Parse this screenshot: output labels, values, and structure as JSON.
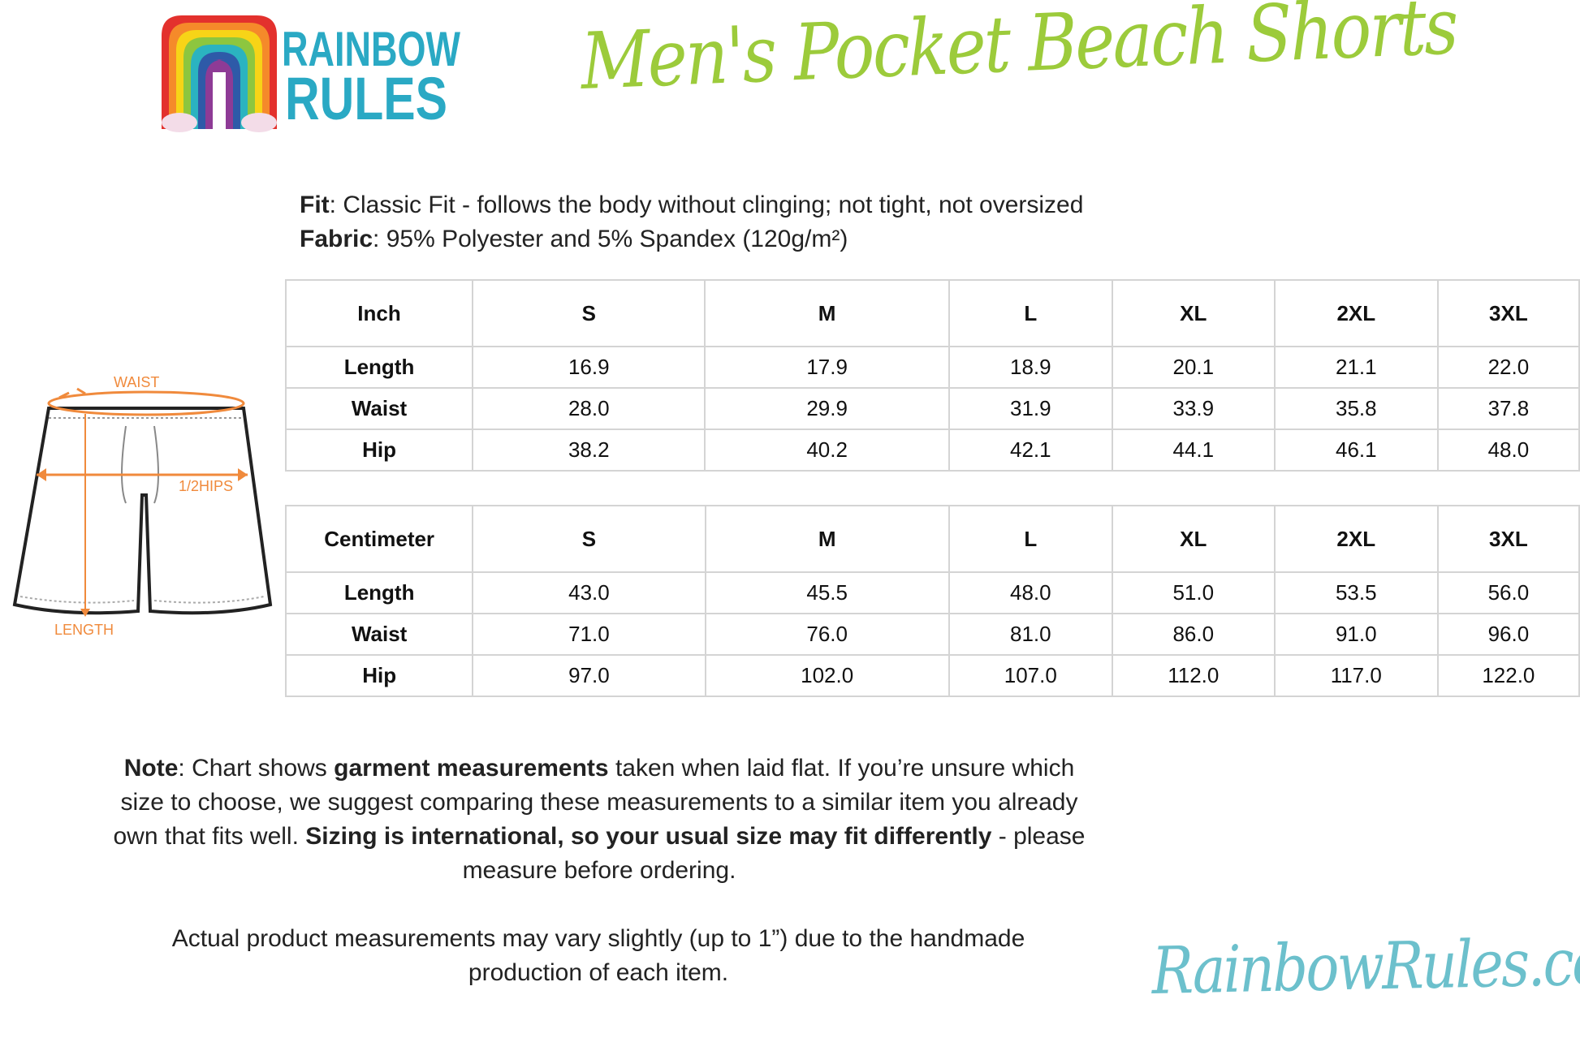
{
  "brand": {
    "logo_text_1": "RAINBOW",
    "logo_text_2": "RULES",
    "colors": [
      "#e3312d",
      "#f58a2a",
      "#f7d417",
      "#8dc63f",
      "#2bb3c0",
      "#2e5aa8",
      "#8e3b96"
    ]
  },
  "title": "Men's Pocket Beach Shorts",
  "specs": {
    "fit_label": "Fit",
    "fit_value": ": Classic Fit - follows the body without clinging; not tight, not oversized",
    "fabric_label": "Fabric",
    "fabric_value": ": 95% Polyester and 5% Spandex (120g/m²)"
  },
  "diagram": {
    "waist": "WAIST",
    "hips": "1/2HIPS",
    "length": "LENGTH",
    "accent": "#f08a3c"
  },
  "inch_table": {
    "headers": [
      "Inch",
      "S",
      "M",
      "L",
      "XL",
      "2XL",
      "3XL"
    ],
    "rows": [
      [
        "Length",
        "16.9",
        "17.9",
        "18.9",
        "20.1",
        "21.1",
        "22.0"
      ],
      [
        "Waist",
        "28.0",
        "29.9",
        "31.9",
        "33.9",
        "35.8",
        "37.8"
      ],
      [
        "Hip",
        "38.2",
        "40.2",
        "42.1",
        "44.1",
        "46.1",
        "48.0"
      ]
    ]
  },
  "cm_table": {
    "headers": [
      "Centimeter",
      "S",
      "M",
      "L",
      "XL",
      "2XL",
      "3XL"
    ],
    "rows": [
      [
        "Length",
        "43.0",
        "45.5",
        "48.0",
        "51.0",
        "53.5",
        "56.0"
      ],
      [
        "Waist",
        "71.0",
        "76.0",
        "81.0",
        "86.0",
        "91.0",
        "96.0"
      ],
      [
        "Hip",
        "97.0",
        "102.0",
        "107.0",
        "112.0",
        "117.0",
        "122.0"
      ]
    ]
  },
  "note": {
    "label": "Note",
    "p1": ": Chart shows ",
    "b1": "garment measurements",
    "p2": " taken when laid flat. If you’re unsure which size to choose, we suggest comparing these measurements to a similar item you already own that fits well. ",
    "b2": "Sizing is international, so your usual size may fit differently",
    "p3": " - please measure before ordering."
  },
  "disclaimer": "Actual product measurements may vary slightly (up to 1”) due to the handmade production of each item.",
  "website": "RainbowRules.com"
}
